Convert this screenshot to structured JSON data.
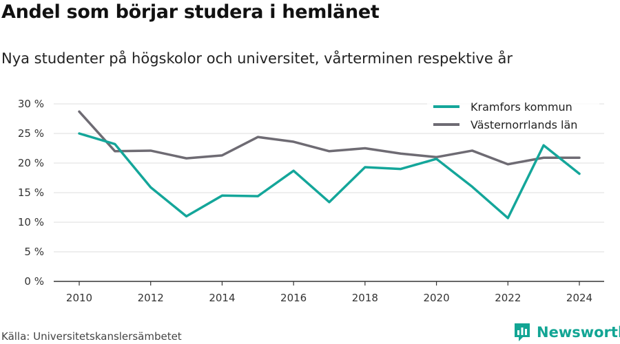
{
  "title": "Andel som börjar studera i hemlänet",
  "subtitle": "Nya studenter på högskolor och universitet, vårterminen respektive år",
  "source": "Källa: Universitetskanslersämbetet",
  "brand": "Newsworthy",
  "brand_icon": "newsworthy-logo-icon",
  "chart_data": {
    "type": "line",
    "x": [
      2010,
      2011,
      2012,
      2013,
      2014,
      2015,
      2016,
      2017,
      2018,
      2019,
      2020,
      2021,
      2022,
      2023,
      2024
    ],
    "x_ticks": [
      2010,
      2012,
      2014,
      2016,
      2018,
      2020,
      2022,
      2024
    ],
    "y_ticks": [
      0,
      5,
      10,
      15,
      20,
      25,
      30
    ],
    "y_tick_labels": [
      "0 %",
      "5 %",
      "10 %",
      "15 %",
      "20 %",
      "25 %",
      "30 %"
    ],
    "ylim": [
      0,
      30
    ],
    "grid": true,
    "legend_position": "top-right",
    "series": [
      {
        "name": "Kramfors kommun",
        "color": "#14a69a",
        "values": [
          25.0,
          23.2,
          15.9,
          11.0,
          14.5,
          14.4,
          18.7,
          13.4,
          19.3,
          19.0,
          20.7,
          16.0,
          10.7,
          23.0,
          18.2
        ]
      },
      {
        "name": "Västernorrlands län",
        "color": "#6e6b73",
        "values": [
          28.7,
          22.0,
          22.1,
          20.8,
          21.3,
          24.4,
          23.6,
          22.0,
          22.5,
          21.6,
          21.0,
          22.1,
          19.8,
          20.9,
          20.9
        ]
      }
    ]
  }
}
